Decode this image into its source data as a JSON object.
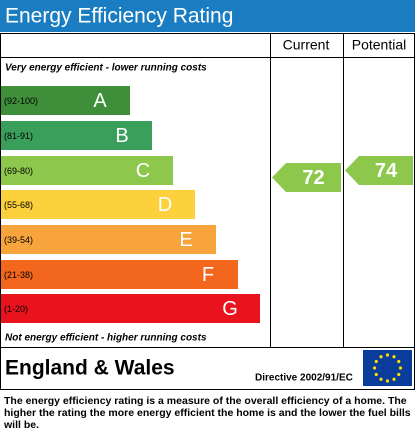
{
  "title": "Energy Efficiency Rating",
  "columns": {
    "current": "Current",
    "potential": "Potential"
  },
  "top_note": "Very energy efficient - lower running costs",
  "bands": [
    {
      "range": "(92-100)",
      "letter": "A",
      "color": "#3f8f3a"
    },
    {
      "range": "(81-91)",
      "letter": "B",
      "color": "#3a9f5a"
    },
    {
      "range": "(69-80)",
      "letter": "C",
      "color": "#8dc84d"
    },
    {
      "range": "(55-68)",
      "letter": "D",
      "color": "#fdd13c"
    },
    {
      "range": "(39-54)",
      "letter": "E",
      "color": "#f8a43c"
    },
    {
      "range": "(21-38)",
      "letter": "F",
      "color": "#f2661e"
    },
    {
      "range": "(1-20)",
      "letter": "G",
      "color": "#e8131c"
    }
  ],
  "current": {
    "value": 72,
    "color": "#8dc84d"
  },
  "potential": {
    "value": 74,
    "color": "#8dc84d"
  },
  "bottom_note": "Not energy efficient - higher running costs",
  "footer": {
    "region": "England & Wales",
    "directive": "Directive 2002/91/EC"
  },
  "description": "The energy efficiency rating is a measure of the overall efficiency of a home. The higher the rating the more energy efficient the home is and the lower the fuel bills will be."
}
